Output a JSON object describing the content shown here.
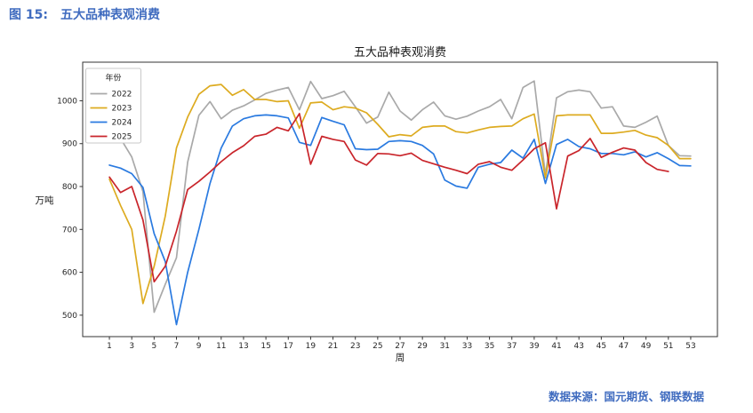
{
  "header": {
    "figure_label": "图 15:",
    "figure_title": "五大品种表观消费"
  },
  "footer": {
    "source": "数据来源：国元期货、钢联数据"
  },
  "chart_data": {
    "type": "line",
    "title": "五大品种表观消费",
    "xlabel": "周",
    "ylabel": "万吨",
    "legend_title": "年份",
    "legend_position": "upper-left",
    "grid": false,
    "xlim": [
      -1.39,
      55.39
    ],
    "ylim": [
      450,
      1090
    ],
    "x_ticks": [
      1,
      3,
      5,
      7,
      9,
      11,
      13,
      15,
      17,
      19,
      21,
      23,
      25,
      27,
      29,
      31,
      33,
      35,
      37,
      39,
      41,
      43,
      45,
      47,
      49,
      51,
      53
    ],
    "y_ticks": [
      500,
      600,
      700,
      800,
      900,
      1000
    ],
    "x_start_week": 1,
    "series": [
      {
        "name": "2022",
        "color": "#a9a9a9",
        "values": [
          907,
          912,
          869,
          788,
          507,
          572,
          634,
          857,
          966,
          998,
          958,
          978,
          988,
          1002,
          1017,
          1025,
          1031,
          979,
          1045,
          1005,
          1012,
          1022,
          986,
          948,
          962,
          1020,
          976,
          955,
          979,
          997,
          965,
          957,
          964,
          976,
          986,
          1003,
          958,
          1031,
          1046,
          827,
          1007,
          1021,
          1025,
          1021,
          983,
          986,
          941,
          938,
          950,
          964,
          896,
          872,
          871
        ]
      },
      {
        "name": "2023",
        "color": "#ddab20",
        "values": [
          817,
          756,
          700,
          527,
          614,
          731,
          890,
          962,
          1015,
          1035,
          1038,
          1013,
          1026,
          1003,
          1003,
          998,
          1000,
          936,
          995,
          997,
          979,
          986,
          983,
          972,
          945,
          916,
          921,
          918,
          938,
          941,
          941,
          928,
          925,
          932,
          938,
          940,
          941,
          958,
          969,
          820,
          965,
          967,
          967,
          967,
          924,
          924,
          927,
          931,
          920,
          914,
          896,
          865,
          865
        ]
      },
      {
        "name": "2024",
        "color": "#2a7ae0",
        "values": [
          850,
          843,
          830,
          798,
          690,
          625,
          478,
          600,
          700,
          807,
          890,
          941,
          958,
          965,
          967,
          965,
          960,
          903,
          896,
          961,
          952,
          944,
          888,
          886,
          887,
          905,
          907,
          905,
          896,
          876,
          815,
          801,
          796,
          845,
          852,
          856,
          885,
          866,
          910,
          807,
          898,
          910,
          893,
          888,
          877,
          877,
          874,
          881,
          869,
          879,
          865,
          849,
          848
        ]
      },
      {
        "name": "2025",
        "color": "#c9252b",
        "values": [
          822,
          786,
          800,
          722,
          578,
          614,
          696,
          793,
          812,
          834,
          858,
          879,
          895,
          917,
          922,
          938,
          930,
          970,
          852,
          917,
          910,
          905,
          862,
          850,
          877,
          876,
          872,
          878,
          861,
          853,
          845,
          838,
          830,
          852,
          858,
          845,
          838,
          862,
          888,
          902,
          748,
          871,
          884,
          912,
          868,
          880,
          890,
          885,
          856,
          840,
          835
        ]
      }
    ]
  }
}
